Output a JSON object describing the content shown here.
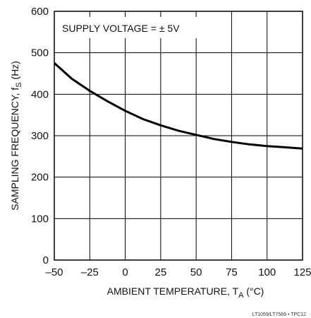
{
  "chart_data": {
    "type": "line",
    "title": "",
    "annotation": "SUPPLY VOLTAGE = ± 5V",
    "xlabel": "AMBIENT TEMPERATURE, T",
    "xlabel_sub": "A",
    "xlabel_unit": " (°C)",
    "ylabel": "SAMPLING FREQUENCY, f",
    "ylabel_sub": "S",
    "ylabel_unit": " (Hz)",
    "xlim": [
      -50,
      125
    ],
    "ylim": [
      0,
      600
    ],
    "x_ticks": [
      -50,
      -25,
      0,
      25,
      50,
      75,
      100,
      125
    ],
    "x_tick_labels": [
      "–50",
      "–25",
      "0",
      "25",
      "50",
      "75",
      "100",
      "125"
    ],
    "y_ticks": [
      0,
      100,
      200,
      300,
      400,
      500,
      600
    ],
    "y_tick_labels": [
      "0",
      "100",
      "200",
      "300",
      "400",
      "500",
      "600"
    ],
    "grid": true,
    "series": [
      {
        "x": [
          -50,
          -37.5,
          -25,
          -12.5,
          0,
          12.5,
          25,
          37.5,
          50,
          62.5,
          75,
          87.5,
          100,
          112.5,
          125
        ],
        "y": [
          475,
          437,
          408,
          383,
          360,
          340,
          325,
          312,
          302,
          292,
          285,
          279,
          275,
          272,
          269
        ]
      }
    ],
    "ref_code": "LT1059/LT7569 • TPC12"
  }
}
